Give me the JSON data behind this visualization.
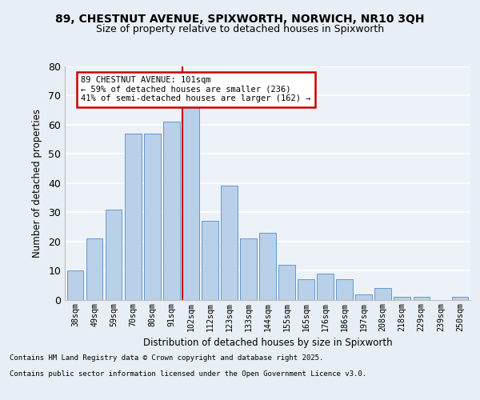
{
  "title1": "89, CHESTNUT AVENUE, SPIXWORTH, NORWICH, NR10 3QH",
  "title2": "Size of property relative to detached houses in Spixworth",
  "xlabel": "Distribution of detached houses by size in Spixworth",
  "ylabel": "Number of detached properties",
  "categories": [
    "38sqm",
    "49sqm",
    "59sqm",
    "70sqm",
    "80sqm",
    "91sqm",
    "102sqm",
    "112sqm",
    "123sqm",
    "133sqm",
    "144sqm",
    "155sqm",
    "165sqm",
    "176sqm",
    "186sqm",
    "197sqm",
    "208sqm",
    "218sqm",
    "229sqm",
    "239sqm",
    "250sqm"
  ],
  "values": [
    10,
    21,
    31,
    57,
    57,
    61,
    67,
    27,
    39,
    21,
    23,
    12,
    7,
    9,
    7,
    2,
    4,
    1,
    1,
    0,
    1
  ],
  "bar_color": "#b8d0e8",
  "bar_edge_color": "#6699cc",
  "vline_color": "#cc0000",
  "annotation_text": "89 CHESTNUT AVENUE: 101sqm\n← 59% of detached houses are smaller (236)\n41% of semi-detached houses are larger (162) →",
  "annotation_box_color": "#cc0000",
  "annotation_text_color": "#000000",
  "yticks": [
    0,
    10,
    20,
    30,
    40,
    50,
    60,
    70,
    80
  ],
  "ylim": [
    0,
    80
  ],
  "bg_color": "#e8eef5",
  "plot_bg_color": "#edf2f8",
  "grid_color": "#ffffff",
  "footer1": "Contains HM Land Registry data © Crown copyright and database right 2025.",
  "footer2": "Contains public sector information licensed under the Open Government Licence v3.0."
}
